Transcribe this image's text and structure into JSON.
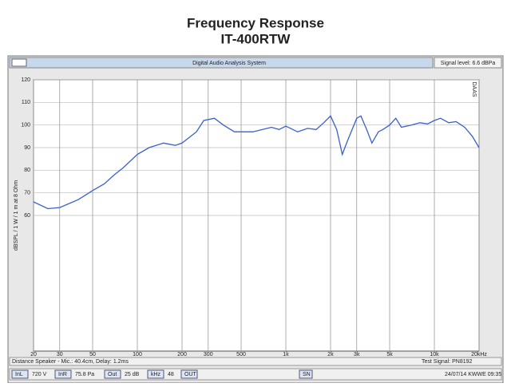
{
  "chart_data": {
    "type": "line",
    "title": "Frequency Response",
    "subtitle": "IT-400RTW",
    "ylabel": "dBSPL / 1 W / 1 m at 8 Ohm",
    "log_x": true,
    "grid": true,
    "xlim": [
      20,
      20000
    ],
    "ylim": [
      0,
      120
    ],
    "xticks": [
      20,
      30,
      50,
      100,
      200,
      300,
      500,
      {
        "value": 1000,
        "label": "1k"
      },
      {
        "value": 2000,
        "label": "2k"
      },
      {
        "value": 3000,
        "label": "3k"
      },
      {
        "value": 5000,
        "label": "5k"
      },
      {
        "value": 10000,
        "label": "10k"
      },
      {
        "value": 20000,
        "label": "20kHz"
      }
    ],
    "yticks": [
      60,
      70,
      80,
      90,
      100,
      110,
      120
    ],
    "series": [
      {
        "color": "#3a5fcd",
        "x": [
          20,
          25,
          30,
          40,
          50,
          60,
          70,
          80,
          100,
          120,
          150,
          180,
          200,
          250,
          280,
          330,
          380,
          450,
          600,
          800,
          900,
          1000,
          1200,
          1400,
          1600,
          1800,
          2000,
          2200,
          2400,
          2600,
          3000,
          3200,
          3500,
          3800,
          4200,
          4500,
          5000,
          5500,
          6000,
          7000,
          8000,
          9000,
          10000,
          11000,
          12500,
          14000,
          16000,
          18000,
          20000
        ],
        "values": [
          66,
          63,
          63.5,
          67,
          71,
          74,
          78,
          81,
          87,
          90,
          92,
          91,
          92,
          97,
          102,
          103,
          100,
          97,
          97,
          99,
          98,
          99.5,
          97,
          98.5,
          98,
          101,
          104,
          98,
          87,
          93,
          103,
          104,
          98,
          92,
          97,
          98,
          100,
          103,
          99,
          100,
          101,
          100.5,
          102,
          103,
          101,
          101.5,
          99,
          95,
          90
        ]
      }
    ]
  },
  "ui": {
    "window_title": "Digital Audio Analysis System",
    "signal_level": "Signal level: 6.6 dBPa",
    "watermark": "DAAS",
    "footer_left": "Distance Speaker - Mic.: 40.4cm, Delay: 1.2ms",
    "footer_right": "Test Signal: PN8192",
    "status": [
      "InL",
      "720 V",
      "InR",
      "75.8 Pa",
      "Out",
      "25 dB",
      "kHz",
      "48",
      "OUT",
      "SN",
      "24/07/14 KWWE 09:35"
    ]
  }
}
